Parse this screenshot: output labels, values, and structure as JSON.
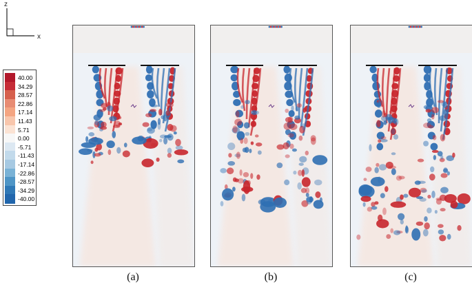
{
  "axes_triad": {
    "vertical_label": "z",
    "horizontal_label": "x"
  },
  "legend": {
    "levels": [
      "40.00",
      "34.29",
      "28.57",
      "22.86",
      "17.14",
      "11.43",
      "5.71",
      "0.00",
      "-5.71",
      "-11.43",
      "-17.14",
      "-22.86",
      "-28.57",
      "-34.29",
      "-40.00"
    ],
    "colors": [
      "#b2182b",
      "#c62c37",
      "#d6604d",
      "#e88c73",
      "#f4a582",
      "#f8c6ac",
      "#fbe3d4",
      "#f7f7f7",
      "#dce8f2",
      "#c2daeb",
      "#a6c9e2",
      "#79b2d6",
      "#4e95c6",
      "#2f78b6",
      "#2166ac"
    ]
  },
  "panels": [
    {
      "caption": "(a)"
    },
    {
      "caption": "(b)"
    },
    {
      "caption": "(c)"
    }
  ],
  "colors": {
    "positive": "#c8262c",
    "negative": "#2f6fb3",
    "background": "#eef1f6",
    "warm_background": "#f6e6df"
  }
}
